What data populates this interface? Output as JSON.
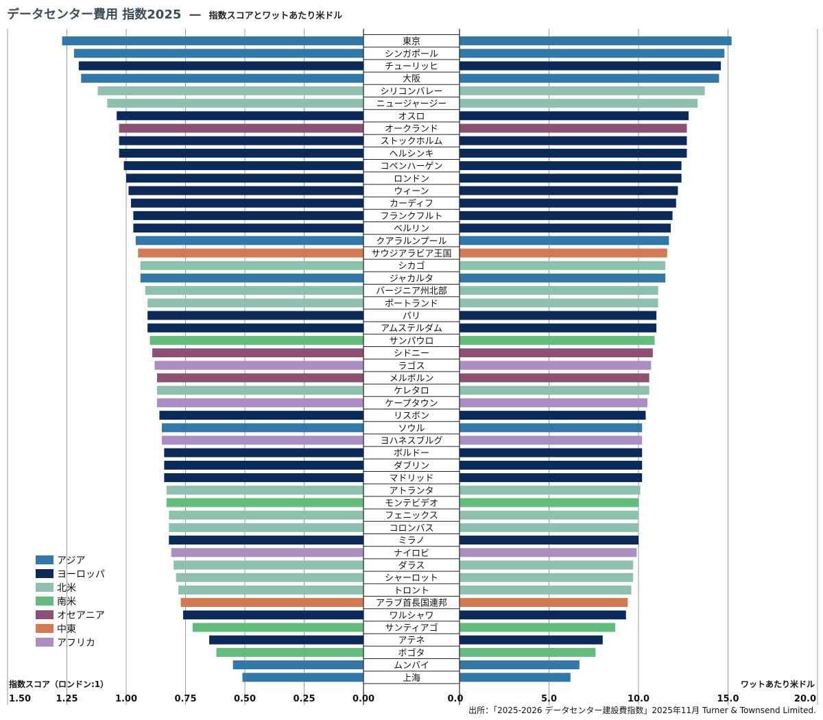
{
  "chart_data": {
    "type": "bar",
    "orientation": "horizontal-butterfly",
    "title": "データセンター費用 指数2025",
    "title_separator": "—",
    "subtitle": "指数スコアとワットあたり米ドル",
    "left_axis": {
      "label": "指数スコア（ロンドン:1）",
      "range": [
        0,
        1.5
      ],
      "ticks": [
        1.5,
        1.25,
        1.0,
        0.75,
        0.5,
        0.25,
        0.0
      ],
      "tick_labels": [
        "1.50",
        "1.25",
        "1.00",
        "0.75",
        "0.50",
        "0.25",
        "0.00"
      ]
    },
    "right_axis": {
      "label": "ワットあたり米ドル",
      "range": [
        0,
        20
      ],
      "ticks": [
        0,
        5,
        10,
        15,
        20
      ],
      "tick_labels": [
        "0.0",
        "5.0",
        "10.0",
        "15.0",
        "20.0"
      ]
    },
    "legend": {
      "placement": "bottom-left",
      "entries": [
        {
          "name": "アジア",
          "color": "#3278a8"
        },
        {
          "name": "ヨーロッパ",
          "color": "#0b2a5a"
        },
        {
          "name": "北米",
          "color": "#8ec1ad"
        },
        {
          "name": "南米",
          "color": "#62bd7c"
        },
        {
          "name": "オセアニア",
          "color": "#8e4f75"
        },
        {
          "name": "中東",
          "color": "#d47a52"
        },
        {
          "name": "アフリカ",
          "color": "#ab8dc4"
        }
      ]
    },
    "region_colors": {
      "アジア": "#3278a8",
      "ヨーロッパ": "#0b2a5a",
      "北米": "#8ec1ad",
      "南米": "#62bd7c",
      "オセアニア": "#8e4f75",
      "中東": "#d47a52",
      "アフリカ": "#ab8dc4"
    },
    "cities": [
      {
        "name": "東京",
        "region": "アジア",
        "index": 1.27,
        "usd_per_watt": 15.2
      },
      {
        "name": "シンガポール",
        "region": "アジア",
        "index": 1.22,
        "usd_per_watt": 14.8
      },
      {
        "name": "チューリッヒ",
        "region": "ヨーロッパ",
        "index": 1.2,
        "usd_per_watt": 14.6
      },
      {
        "name": "大阪",
        "region": "アジア",
        "index": 1.19,
        "usd_per_watt": 14.5
      },
      {
        "name": "シリコンバレー",
        "region": "北米",
        "index": 1.12,
        "usd_per_watt": 13.7
      },
      {
        "name": "ニュージャージー",
        "region": "北米",
        "index": 1.08,
        "usd_per_watt": 13.3
      },
      {
        "name": "オスロ",
        "region": "ヨーロッパ",
        "index": 1.04,
        "usd_per_watt": 12.8
      },
      {
        "name": "オークランド",
        "region": "オセアニア",
        "index": 1.03,
        "usd_per_watt": 12.7
      },
      {
        "name": "ストックホルム",
        "region": "ヨーロッパ",
        "index": 1.03,
        "usd_per_watt": 12.7
      },
      {
        "name": "ヘルシンキ",
        "region": "ヨーロッパ",
        "index": 1.03,
        "usd_per_watt": 12.7
      },
      {
        "name": "コペンハーゲン",
        "region": "ヨーロッパ",
        "index": 1.01,
        "usd_per_watt": 12.4
      },
      {
        "name": "ロンドン",
        "region": "ヨーロッパ",
        "index": 1.0,
        "usd_per_watt": 12.4
      },
      {
        "name": "ウィーン",
        "region": "ヨーロッパ",
        "index": 0.99,
        "usd_per_watt": 12.2
      },
      {
        "name": "カーディフ",
        "region": "ヨーロッパ",
        "index": 0.98,
        "usd_per_watt": 12.1
      },
      {
        "name": "フランクフルト",
        "region": "ヨーロッパ",
        "index": 0.97,
        "usd_per_watt": 11.9
      },
      {
        "name": "ベルリン",
        "region": "ヨーロッパ",
        "index": 0.97,
        "usd_per_watt": 11.8
      },
      {
        "name": "クアラルンプール",
        "region": "アジア",
        "index": 0.96,
        "usd_per_watt": 11.7
      },
      {
        "name": "サウジアラビア王国",
        "region": "中東",
        "index": 0.95,
        "usd_per_watt": 11.6
      },
      {
        "name": "シカゴ",
        "region": "北米",
        "index": 0.94,
        "usd_per_watt": 11.5
      },
      {
        "name": "ジャカルタ",
        "region": "アジア",
        "index": 0.94,
        "usd_per_watt": 11.5
      },
      {
        "name": "バージニア州北部",
        "region": "北米",
        "index": 0.92,
        "usd_per_watt": 11.1
      },
      {
        "name": "ポートランド",
        "region": "北米",
        "index": 0.91,
        "usd_per_watt": 11.1
      },
      {
        "name": "パリ",
        "region": "ヨーロッパ",
        "index": 0.91,
        "usd_per_watt": 11.0
      },
      {
        "name": "アムステルダム",
        "region": "ヨーロッパ",
        "index": 0.91,
        "usd_per_watt": 11.0
      },
      {
        "name": "サンパウロ",
        "region": "南米",
        "index": 0.9,
        "usd_per_watt": 10.9
      },
      {
        "name": "シドニー",
        "region": "オセアニア",
        "index": 0.89,
        "usd_per_watt": 10.8
      },
      {
        "name": "ラゴス",
        "region": "アフリカ",
        "index": 0.88,
        "usd_per_watt": 10.7
      },
      {
        "name": "メルボルン",
        "region": "オセアニア",
        "index": 0.87,
        "usd_per_watt": 10.6
      },
      {
        "name": "ケレタロ",
        "region": "北米",
        "index": 0.87,
        "usd_per_watt": 10.6
      },
      {
        "name": "ケープタウン",
        "region": "アフリカ",
        "index": 0.87,
        "usd_per_watt": 10.5
      },
      {
        "name": "リスボン",
        "region": "ヨーロッパ",
        "index": 0.86,
        "usd_per_watt": 10.4
      },
      {
        "name": "ソウル",
        "region": "アジア",
        "index": 0.85,
        "usd_per_watt": 10.2
      },
      {
        "name": "ヨハネスブルグ",
        "region": "アフリカ",
        "index": 0.85,
        "usd_per_watt": 10.2
      },
      {
        "name": "ボルドー",
        "region": "ヨーロッパ",
        "index": 0.84,
        "usd_per_watt": 10.2
      },
      {
        "name": "ダブリン",
        "region": "ヨーロッパ",
        "index": 0.84,
        "usd_per_watt": 10.2
      },
      {
        "name": "マドリッド",
        "region": "ヨーロッパ",
        "index": 0.84,
        "usd_per_watt": 10.2
      },
      {
        "name": "アトランタ",
        "region": "北米",
        "index": 0.83,
        "usd_per_watt": 10.1
      },
      {
        "name": "モンテビデオ",
        "region": "南米",
        "index": 0.83,
        "usd_per_watt": 10.0
      },
      {
        "name": "フェニックス",
        "region": "北米",
        "index": 0.82,
        "usd_per_watt": 10.0
      },
      {
        "name": "コロンバス",
        "region": "北米",
        "index": 0.82,
        "usd_per_watt": 10.0
      },
      {
        "name": "ミラノ",
        "region": "ヨーロッパ",
        "index": 0.82,
        "usd_per_watt": 10.0
      },
      {
        "name": "ナイロビ",
        "region": "アフリカ",
        "index": 0.81,
        "usd_per_watt": 9.9
      },
      {
        "name": "ダラス",
        "region": "北米",
        "index": 0.8,
        "usd_per_watt": 9.7
      },
      {
        "name": "シャーロット",
        "region": "北米",
        "index": 0.79,
        "usd_per_watt": 9.7
      },
      {
        "name": "トロント",
        "region": "北米",
        "index": 0.78,
        "usd_per_watt": 9.6
      },
      {
        "name": "アラブ首長国連邦",
        "region": "中東",
        "index": 0.77,
        "usd_per_watt": 9.4
      },
      {
        "name": "ワルシャワ",
        "region": "ヨーロッパ",
        "index": 0.76,
        "usd_per_watt": 9.3
      },
      {
        "name": "サンティアゴ",
        "region": "南米",
        "index": 0.72,
        "usd_per_watt": 8.7
      },
      {
        "name": "アテネ",
        "region": "ヨーロッパ",
        "index": 0.65,
        "usd_per_watt": 8.0
      },
      {
        "name": "ボゴタ",
        "region": "南米",
        "index": 0.62,
        "usd_per_watt": 7.6
      },
      {
        "name": "ムンバイ",
        "region": "アジア",
        "index": 0.55,
        "usd_per_watt": 6.7
      },
      {
        "name": "上海",
        "region": "アジア",
        "index": 0.51,
        "usd_per_watt": 6.2
      }
    ],
    "source": "出所：「2025-2026 データセンター建設費指数」2025年11月 Turner & Townsend Limited."
  }
}
